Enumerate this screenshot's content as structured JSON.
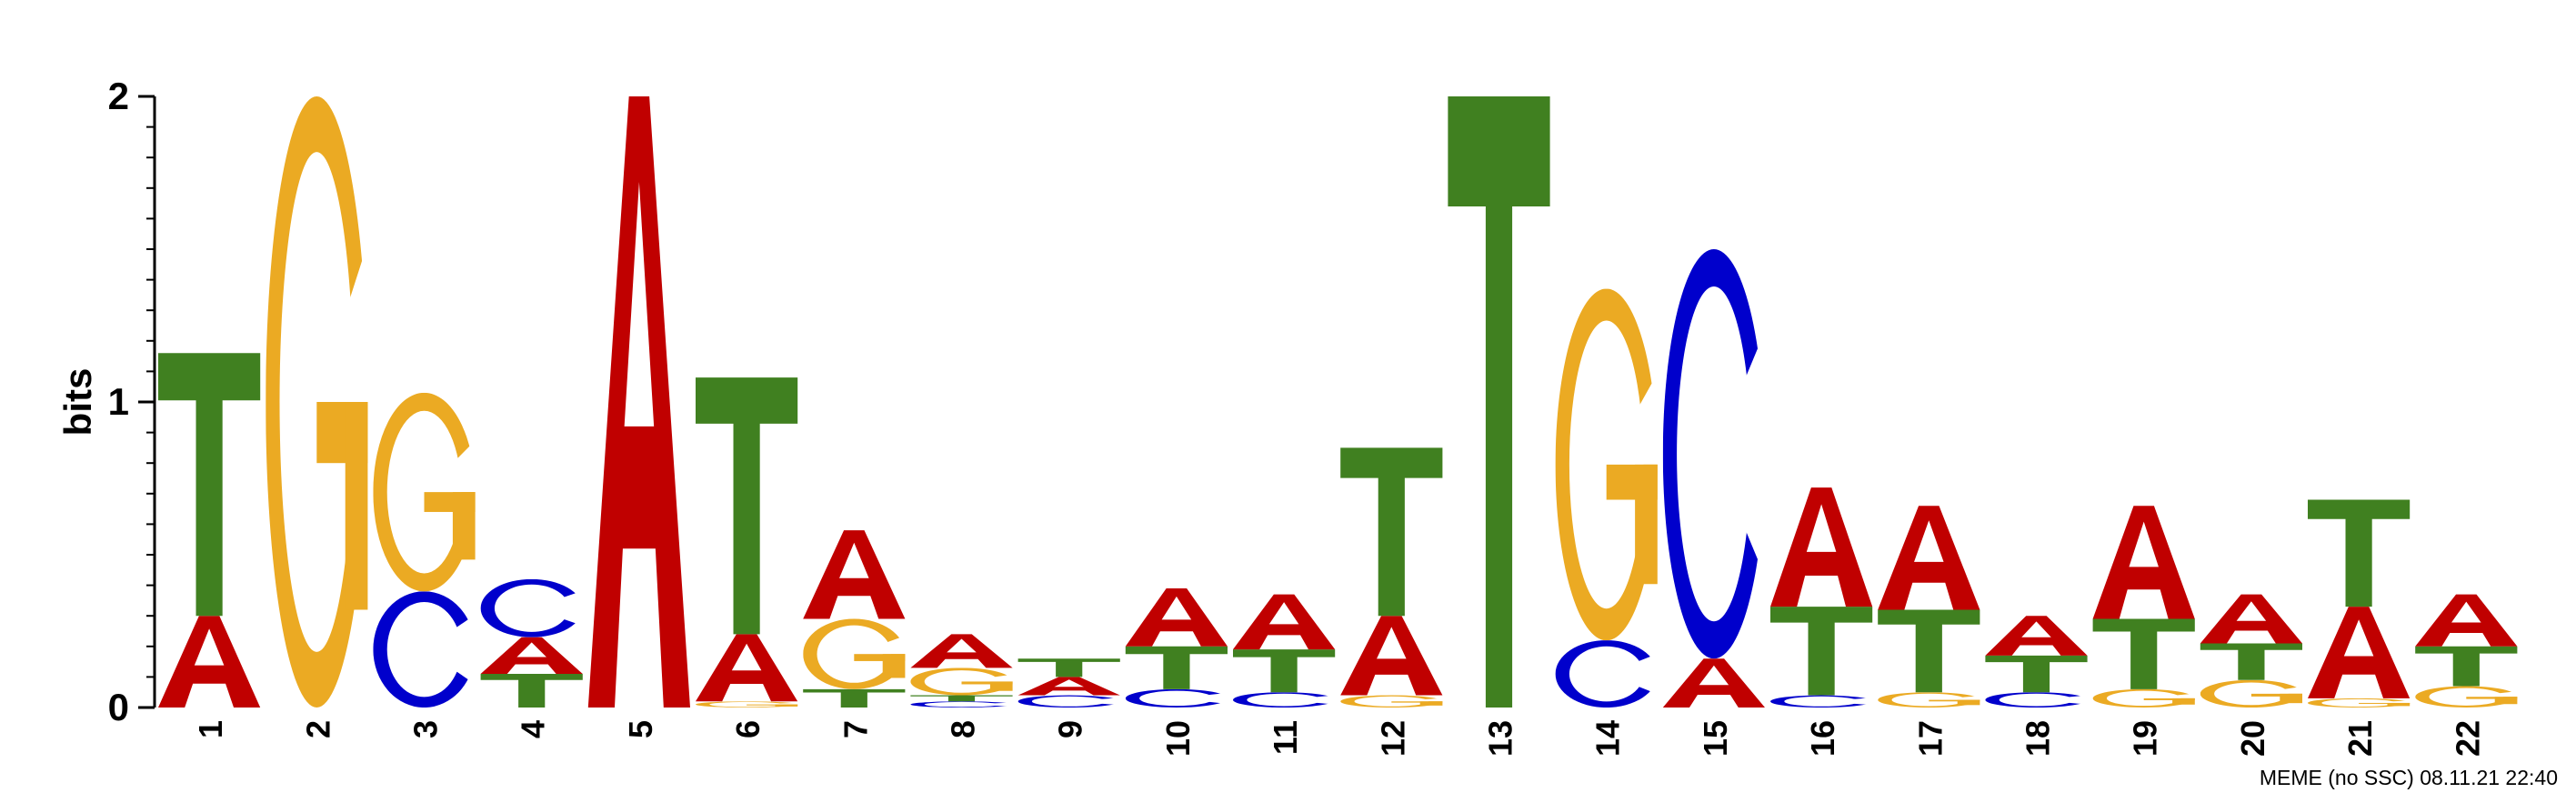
{
  "chart_data": {
    "type": "sequence-logo",
    "ylabel": "bits",
    "ylim": [
      0,
      2
    ],
    "yticks": [
      0,
      1,
      2
    ],
    "colors": {
      "A": "#C00000",
      "C": "#0000CC",
      "G": "#EBAA23",
      "T": "#408020"
    },
    "positions": [
      {
        "label": "1",
        "letters": [
          [
            "A",
            0.3
          ],
          [
            "T",
            0.86
          ]
        ]
      },
      {
        "label": "2",
        "letters": [
          [
            "G",
            2.0
          ]
        ]
      },
      {
        "label": "3",
        "letters": [
          [
            "C",
            0.38
          ],
          [
            "G",
            0.65
          ]
        ]
      },
      {
        "label": "4",
        "letters": [
          [
            "T",
            0.11
          ],
          [
            "A",
            0.12
          ],
          [
            "C",
            0.19
          ]
        ]
      },
      {
        "label": "5",
        "letters": [
          [
            "A",
            2.0
          ]
        ]
      },
      {
        "label": "6",
        "letters": [
          [
            "G",
            0.02
          ],
          [
            "A",
            0.22
          ],
          [
            "T",
            0.84
          ]
        ]
      },
      {
        "label": "7",
        "letters": [
          [
            "T",
            0.06
          ],
          [
            "G",
            0.23
          ],
          [
            "A",
            0.29
          ]
        ]
      },
      {
        "label": "8",
        "letters": [
          [
            "C",
            0.02
          ],
          [
            "T",
            0.02
          ],
          [
            "G",
            0.09
          ],
          [
            "A",
            0.11
          ]
        ]
      },
      {
        "label": "9",
        "letters": [
          [
            "C",
            0.04
          ],
          [
            "A",
            0.06
          ],
          [
            "T",
            0.06
          ]
        ]
      },
      {
        "label": "10",
        "letters": [
          [
            "C",
            0.06
          ],
          [
            "T",
            0.14
          ],
          [
            "A",
            0.19
          ]
        ]
      },
      {
        "label": "11",
        "letters": [
          [
            "C",
            0.05
          ],
          [
            "T",
            0.14
          ],
          [
            "A",
            0.18
          ]
        ]
      },
      {
        "label": "12",
        "letters": [
          [
            "G",
            0.04
          ],
          [
            "A",
            0.26
          ],
          [
            "T",
            0.55
          ]
        ]
      },
      {
        "label": "13",
        "letters": [
          [
            "T",
            2.0
          ]
        ]
      },
      {
        "label": "14",
        "letters": [
          [
            "C",
            0.22
          ],
          [
            "G",
            1.15
          ]
        ]
      },
      {
        "label": "15",
        "letters": [
          [
            "A",
            0.16
          ],
          [
            "C",
            1.34
          ]
        ]
      },
      {
        "label": "16",
        "letters": [
          [
            "C",
            0.04
          ],
          [
            "T",
            0.29
          ],
          [
            "A",
            0.39
          ]
        ]
      },
      {
        "label": "17",
        "letters": [
          [
            "G",
            0.05
          ],
          [
            "T",
            0.27
          ],
          [
            "A",
            0.34
          ]
        ]
      },
      {
        "label": "18",
        "letters": [
          [
            "C",
            0.05
          ],
          [
            "T",
            0.12
          ],
          [
            "A",
            0.13
          ]
        ]
      },
      {
        "label": "19",
        "letters": [
          [
            "G",
            0.06
          ],
          [
            "T",
            0.23
          ],
          [
            "A",
            0.37
          ]
        ]
      },
      {
        "label": "20",
        "letters": [
          [
            "G",
            0.09
          ],
          [
            "T",
            0.12
          ],
          [
            "A",
            0.16
          ]
        ]
      },
      {
        "label": "21",
        "letters": [
          [
            "G",
            0.03
          ],
          [
            "A",
            0.3
          ],
          [
            "T",
            0.35
          ]
        ]
      },
      {
        "label": "22",
        "letters": [
          [
            "G",
            0.07
          ],
          [
            "T",
            0.13
          ],
          [
            "A",
            0.17
          ]
        ]
      }
    ]
  },
  "credit": "MEME (no SSC) 08.11.21 22:40"
}
